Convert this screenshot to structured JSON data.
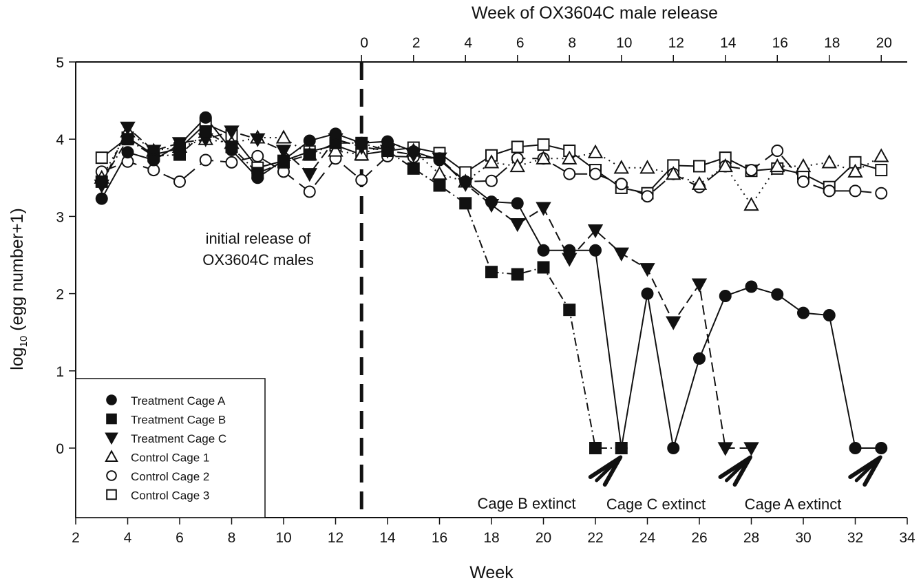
{
  "chart_data": {
    "type": "line",
    "title": "",
    "xlabel": "Week",
    "ylabel": "log10 (egg number+1)",
    "ylabel_parts": {
      "base": "log",
      "sub": "10",
      "rest": " (egg number+1)"
    },
    "xlim": [
      2,
      34
    ],
    "ylim": [
      0,
      5
    ],
    "x_ticks": [
      2,
      4,
      6,
      8,
      10,
      12,
      14,
      16,
      18,
      20,
      22,
      24,
      26,
      28,
      30,
      32,
      34
    ],
    "y_ticks": [
      0,
      1,
      2,
      3,
      4,
      5
    ],
    "grid": false,
    "secondary_x_axis": {
      "label": "Week of OX3604C male release",
      "offset_week": 13,
      "ticks": [
        0,
        2,
        4,
        6,
        8,
        10,
        12,
        14,
        16,
        18,
        20
      ]
    },
    "release_line": {
      "week": 13,
      "label_lines": [
        "initial release of",
        "OX3604C males"
      ]
    },
    "legend_position": "bottom-left",
    "series": [
      {
        "name": "Treatment Cage A",
        "marker": "circle",
        "filled": true,
        "line": "solid",
        "x": [
          3,
          4,
          5,
          6,
          7,
          8,
          9,
          10,
          11,
          12,
          13,
          14,
          15,
          16,
          17,
          18,
          19,
          20,
          21,
          22,
          23,
          24,
          25,
          26,
          27,
          28,
          29,
          30,
          31,
          32,
          33
        ],
        "values": [
          3.23,
          3.83,
          3.73,
          3.93,
          4.28,
          3.86,
          3.5,
          3.73,
          3.98,
          4.07,
          3.95,
          3.97,
          3.84,
          3.73,
          3.45,
          3.19,
          3.17,
          2.56,
          2.56,
          2.56,
          0,
          2.0,
          0,
          1.16,
          1.97,
          2.09,
          1.99,
          1.75,
          1.72,
          0,
          0
        ]
      },
      {
        "name": "Treatment Cage B",
        "marker": "square",
        "filled": true,
        "line": "dashdot",
        "x": [
          3,
          4,
          5,
          6,
          7,
          8,
          9,
          10,
          11,
          12,
          13,
          14,
          15,
          16,
          17,
          18,
          19,
          20,
          21,
          22,
          23
        ],
        "values": [
          3.45,
          4.0,
          3.78,
          3.8,
          4.1,
          3.9,
          3.56,
          3.7,
          3.8,
          3.95,
          3.95,
          3.85,
          3.62,
          3.4,
          3.17,
          2.28,
          2.25,
          2.34,
          1.79,
          0,
          0
        ]
      },
      {
        "name": "Treatment Cage C",
        "marker": "triangle-down",
        "filled": true,
        "line": "dashed",
        "x": [
          3,
          4,
          5,
          6,
          7,
          8,
          9,
          10,
          11,
          12,
          13,
          14,
          15,
          16,
          17,
          18,
          19,
          20,
          21,
          22,
          23,
          24,
          25,
          26,
          27,
          28
        ],
        "values": [
          3.4,
          4.15,
          3.85,
          3.95,
          4.0,
          4.1,
          4.0,
          3.85,
          3.55,
          4.0,
          3.9,
          3.85,
          3.8,
          3.75,
          3.42,
          3.15,
          2.9,
          3.11,
          2.45,
          2.82,
          2.52,
          2.32,
          1.63,
          2.12,
          0,
          0
        ]
      },
      {
        "name": "Control Cage 1",
        "marker": "triangle-up",
        "filled": false,
        "line": "dotted",
        "x": [
          3,
          4,
          5,
          6,
          7,
          8,
          9,
          10,
          11,
          12,
          13,
          14,
          15,
          16,
          17,
          18,
          19,
          20,
          21,
          22,
          23,
          24,
          25,
          26,
          27,
          28,
          29,
          30,
          31,
          32,
          33
        ],
        "values": [
          3.5,
          4.1,
          3.85,
          3.9,
          4.0,
          3.95,
          4.02,
          4.02,
          3.8,
          3.85,
          3.8,
          3.95,
          3.85,
          3.55,
          3.45,
          3.7,
          3.65,
          3.75,
          3.75,
          3.83,
          3.63,
          3.63,
          3.55,
          3.42,
          3.65,
          3.15,
          3.65,
          3.65,
          3.7,
          3.58,
          3.78
        ]
      },
      {
        "name": "Control Cage 2",
        "marker": "circle",
        "filled": false,
        "line": "longdash",
        "x": [
          3,
          4,
          5,
          6,
          7,
          8,
          9,
          10,
          11,
          12,
          13,
          14,
          15,
          16,
          17,
          18,
          19,
          20,
          21,
          22,
          23,
          24,
          25,
          26,
          27,
          28,
          29,
          30,
          31,
          32,
          33
        ],
        "values": [
          3.58,
          3.71,
          3.6,
          3.45,
          3.73,
          3.7,
          3.78,
          3.58,
          3.32,
          3.75,
          3.47,
          3.78,
          3.77,
          3.75,
          3.45,
          3.46,
          3.75,
          3.75,
          3.55,
          3.55,
          3.42,
          3.26,
          3.55,
          3.38,
          3.65,
          3.6,
          3.85,
          3.45,
          3.33,
          3.33,
          3.3
        ]
      },
      {
        "name": "Control Cage 3",
        "marker": "square",
        "filled": false,
        "line": "solid",
        "x": [
          3,
          4,
          5,
          6,
          7,
          8,
          9,
          10,
          11,
          12,
          13,
          14,
          15,
          16,
          17,
          18,
          19,
          20,
          21,
          22,
          23,
          24,
          25,
          26,
          27,
          28,
          29,
          30,
          31,
          32,
          33
        ],
        "values": [
          3.76,
          4.02,
          3.8,
          3.88,
          4.2,
          4.05,
          3.63,
          3.72,
          3.84,
          3.92,
          3.8,
          3.85,
          3.89,
          3.82,
          3.57,
          3.79,
          3.9,
          3.93,
          3.85,
          3.6,
          3.37,
          3.3,
          3.66,
          3.65,
          3.76,
          3.59,
          3.62,
          3.55,
          3.38,
          3.7,
          3.6
        ]
      }
    ],
    "annotations": [
      {
        "text": "Cage B extinct",
        "arrow_to": {
          "x": 23,
          "y": 0
        }
      },
      {
        "text": "Cage C extinct",
        "arrow_to": {
          "x": 28,
          "y": 0
        }
      },
      {
        "text": "Cage A extinct",
        "arrow_to": {
          "x": 33,
          "y": 0
        }
      }
    ]
  }
}
